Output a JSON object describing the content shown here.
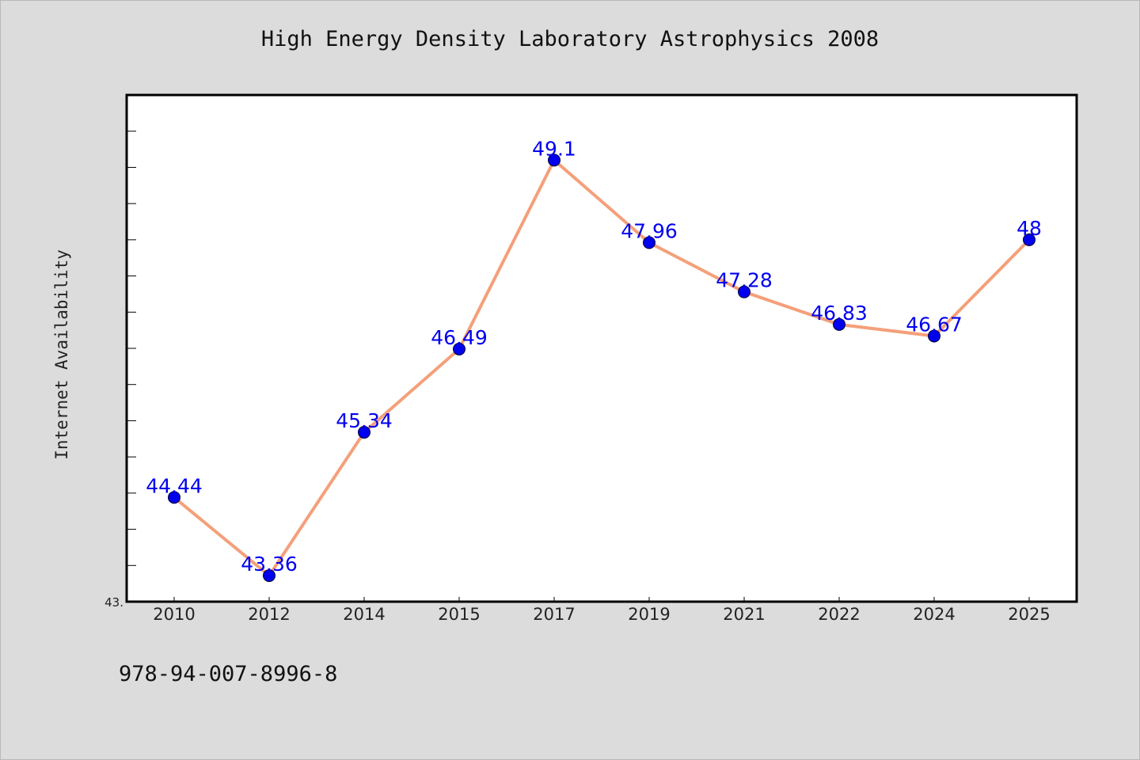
{
  "chart_data": {
    "type": "line",
    "title": "High Energy Density Laboratory Astrophysics 2008",
    "ylabel": "Internet Availability",
    "xlabel": "",
    "categories": [
      "2010",
      "2012",
      "2014",
      "2015",
      "2017",
      "2019",
      "2021",
      "2022",
      "2024",
      "2025"
    ],
    "series": [
      {
        "values": [
          44.44,
          43.36,
          45.34,
          46.49,
          49.1,
          47.96,
          47.28,
          46.83,
          46.67,
          48
        ],
        "labels": [
          "44.44",
          "43.36",
          "45.34",
          "46.49",
          "49.1",
          "47.96",
          "47.28",
          "46.83",
          "46.67",
          "48"
        ],
        "line_color": "#f4a07a",
        "marker_color": "#0000ee"
      }
    ],
    "ylim": [
      43,
      50
    ],
    "y_tick_labels": [
      "43."
    ],
    "grid": false,
    "legend": "none"
  },
  "footer": {
    "identifier": "978-94-007-8996-8"
  },
  "colors": {
    "background": "#dcdcdc",
    "plot_background": "#ffffff",
    "axis": "#000000",
    "label_text": "#0000ee"
  }
}
